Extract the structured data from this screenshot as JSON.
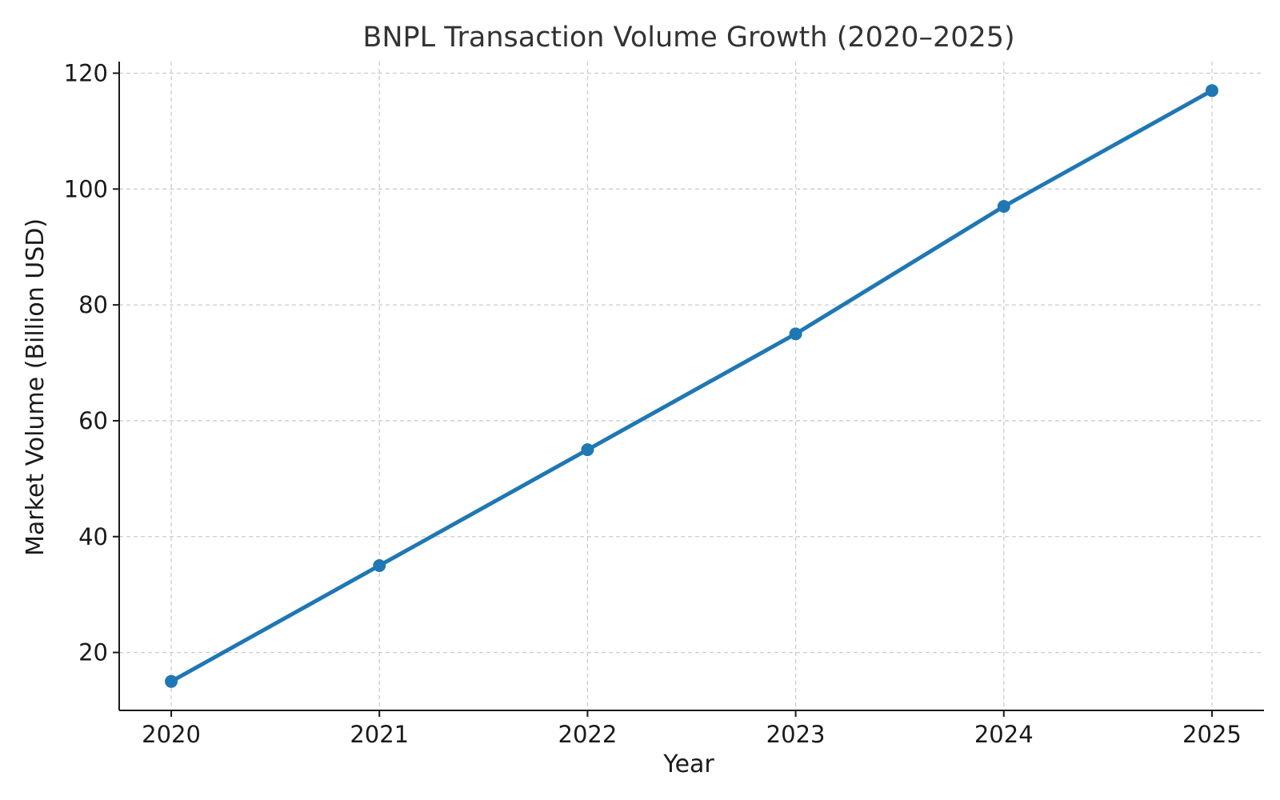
{
  "chart_data": {
    "type": "line",
    "title": "BNPL Transaction Volume Growth (2020–2025)",
    "xlabel": "Year",
    "ylabel": "Market Volume (Billion USD)",
    "x": [
      2020,
      2021,
      2022,
      2023,
      2024,
      2025
    ],
    "x_tick_labels": [
      "2020",
      "2021",
      "2022",
      "2023",
      "2024",
      "2025"
    ],
    "y_ticks": [
      20,
      40,
      60,
      80,
      100,
      120
    ],
    "y_tick_labels": [
      "20",
      "40",
      "60",
      "80",
      "100",
      "120"
    ],
    "series": [
      {
        "values": [
          15,
          35,
          55,
          75,
          97,
          117
        ],
        "color": "#1f77b4",
        "marker": "circle"
      }
    ],
    "xlim": [
      2019.75,
      2025.25
    ],
    "ylim": [
      10,
      122
    ],
    "grid": true,
    "grid_style": "dashed",
    "legend": "none"
  }
}
